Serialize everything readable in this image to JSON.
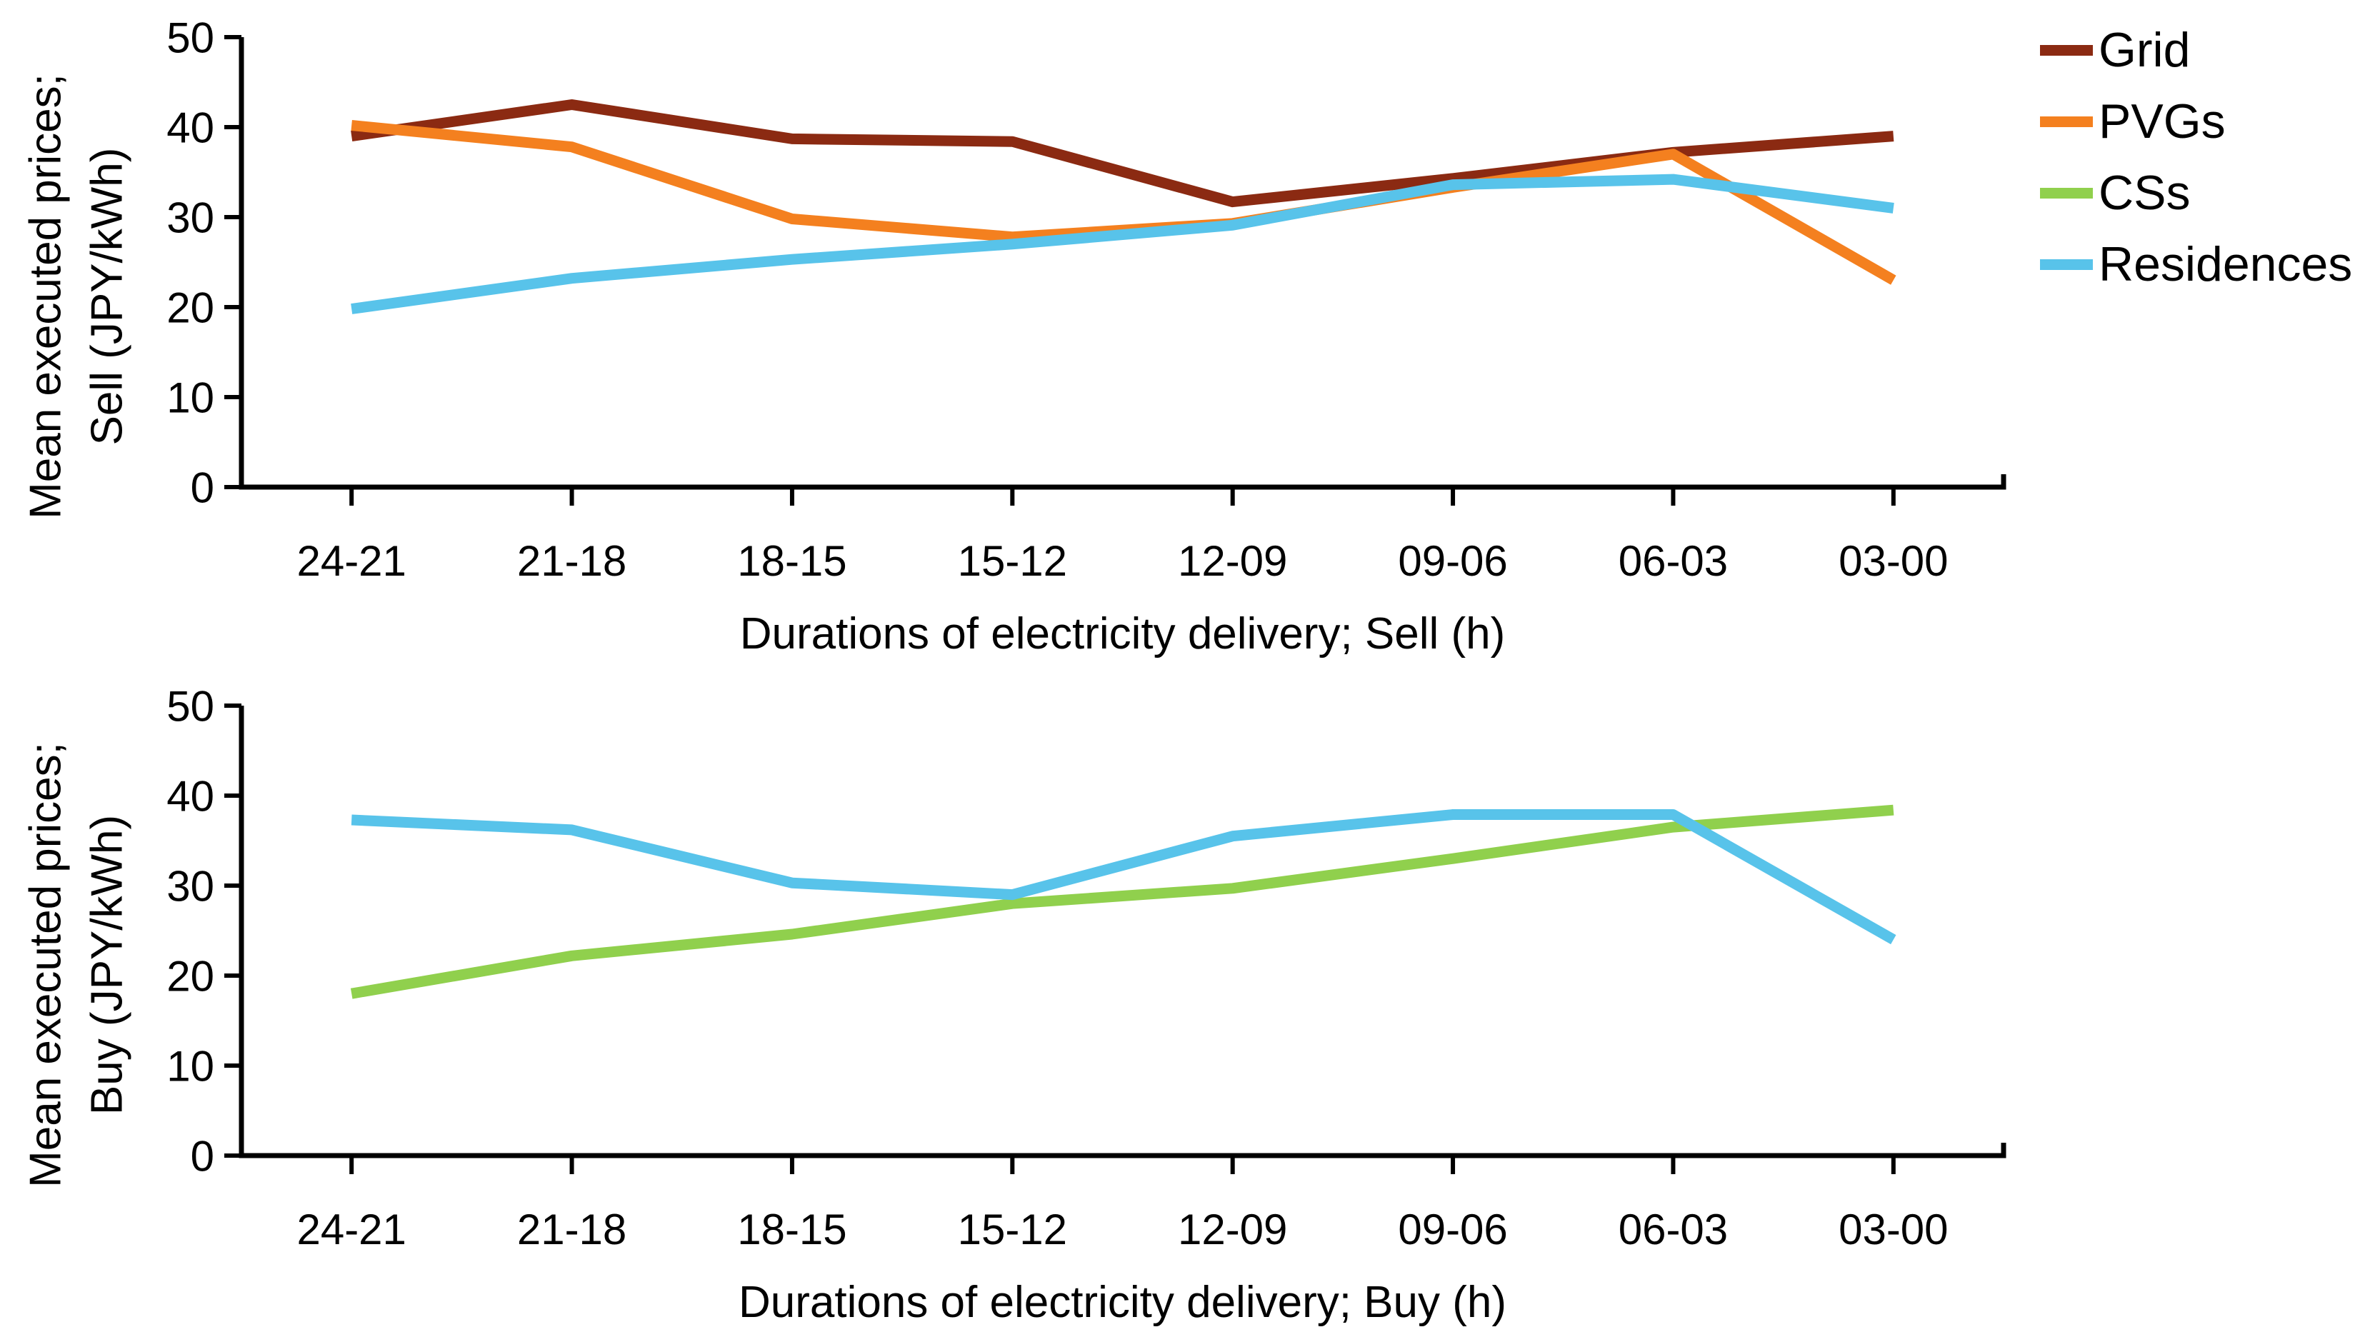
{
  "figure": {
    "background": "#ffffff"
  },
  "legend": {
    "position": "top-right",
    "items": [
      {
        "label": "Grid",
        "color": "#8B2A12"
      },
      {
        "label": "PVGs",
        "color": "#F4801F"
      },
      {
        "label": "CSs",
        "color": "#90D04D"
      },
      {
        "label": "Residences",
        "color": "#58C3EA"
      }
    ]
  },
  "chart_data": [
    {
      "type": "line",
      "name": "sell",
      "title": "",
      "xlabel": "Durations of electricity delivery; Sell (h)",
      "ylabel_lines": [
        "Mean executed prices;",
        "Sell (JPY/kWh)"
      ],
      "categories": [
        "24-21",
        "21-18",
        "18-15",
        "15-12",
        "12-09",
        "09-06",
        "06-03",
        "03-00"
      ],
      "ylim": [
        0,
        50
      ],
      "yticks": [
        0,
        10,
        20,
        30,
        40,
        50
      ],
      "grid": false,
      "series": [
        {
          "name": "Grid",
          "color": "#8B2A12",
          "values": [
            39.0,
            42.5,
            38.7,
            38.4,
            31.7,
            34.3,
            37.2,
            39.0
          ]
        },
        {
          "name": "PVGs",
          "color": "#F4801F",
          "values": [
            40.2,
            37.8,
            29.8,
            27.8,
            29.3,
            33.3,
            37.0,
            23.0
          ]
        },
        {
          "name": "Residences",
          "color": "#58C3EA",
          "values": [
            19.8,
            23.2,
            25.3,
            27.0,
            29.1,
            33.6,
            34.2,
            31.0
          ]
        }
      ]
    },
    {
      "type": "line",
      "name": "buy",
      "title": "",
      "xlabel": "Durations of electricity delivery; Buy (h)",
      "ylabel_lines": [
        "Mean executed prices;",
        "Buy (JPY/kWh)"
      ],
      "categories": [
        "24-21",
        "21-18",
        "18-15",
        "15-12",
        "12-09",
        "09-06",
        "06-03",
        "03-00"
      ],
      "ylim": [
        0,
        50
      ],
      "yticks": [
        0,
        10,
        20,
        30,
        40,
        50
      ],
      "grid": false,
      "series": [
        {
          "name": "CSs",
          "color": "#90D04D",
          "values": [
            18.0,
            22.2,
            24.6,
            28.0,
            29.7,
            33.0,
            36.5,
            38.4
          ]
        },
        {
          "name": "Residences",
          "color": "#58C3EA",
          "values": [
            37.3,
            36.2,
            30.3,
            29.0,
            35.5,
            37.9,
            37.9,
            24.0
          ]
        }
      ]
    }
  ]
}
